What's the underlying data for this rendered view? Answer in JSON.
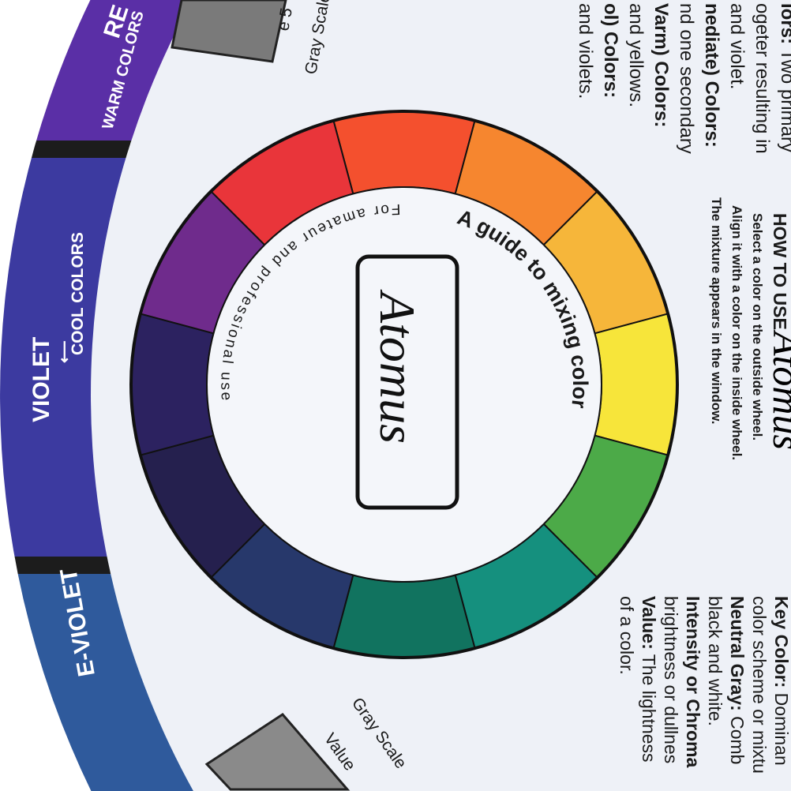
{
  "band": {
    "red_label": "RE",
    "warm_label": "WARM COLORS",
    "violet_label": "VIOLET",
    "cool_label": "COOL COLORS",
    "blue_violet_label": "E-VIOLET",
    "colors": {
      "red_violet": "#5a2fa6",
      "violet": "#3c3aa0",
      "blue_violet": "#2f5a9c",
      "divider": "#1c1c1c"
    }
  },
  "gray_scale": {
    "top_label": "Gray Scale",
    "top_value": "e 5",
    "bottom_label": "Gray Scale",
    "bottom_value": "Value"
  },
  "wheel": {
    "title": "A guide to mixing color",
    "subtitle": "For amateur and professional use",
    "brand": "Atomus",
    "segments": [
      "#f4502e",
      "#f6862f",
      "#f6b63a",
      "#f7e53a",
      "#4caa48",
      "#15907e",
      "#11735f",
      "#27386b",
      "#25204e",
      "#2c2260",
      "#6f2b8c",
      "#e9353a"
    ]
  },
  "text_top": [
    {
      "bold": "lors:",
      "rest": " Two primary"
    },
    {
      "bold": "",
      "rest": "ogeter resulting in"
    },
    {
      "bold": "",
      "rest": "and violet."
    },
    {
      "bold": "nediate) Colors:",
      "rest": ""
    },
    {
      "bold": "",
      "rest": "nd one secondary"
    },
    {
      "bold": "Varm) Colors:",
      "rest": ""
    },
    {
      "bold": "",
      "rest": "and yellows."
    },
    {
      "bold": "ol) Colors:",
      "rest": ""
    },
    {
      "bold": "",
      "rest": "and violets."
    }
  ],
  "how_to": {
    "heading": "HOW TO USE",
    "brand": "Atomus",
    "lines": [
      "Select a color on the outside wheel.",
      "Align it with a color on the inside wheel.",
      "The mixture appears in the window."
    ]
  },
  "text_bottom": [
    {
      "bold": "Key Color:",
      "rest": " Dominan"
    },
    {
      "bold": "",
      "rest": "color scheme or mixtu"
    },
    {
      "bold": "Neutral Gray:",
      "rest": " Comb"
    },
    {
      "bold": "",
      "rest": "black and white."
    },
    {
      "bold": "Intensity or Chroma",
      "rest": ""
    },
    {
      "bold": "",
      "rest": "brightness or dullnes"
    },
    {
      "bold": "Value:",
      "rest": " The lightness"
    },
    {
      "bold": "",
      "rest": "of a color."
    }
  ]
}
